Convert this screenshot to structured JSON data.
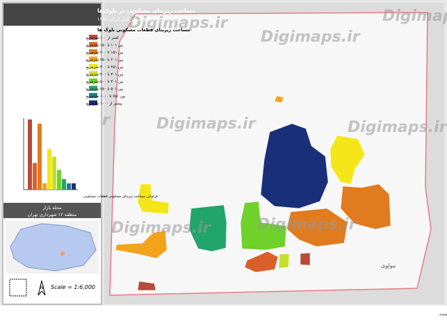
{
  "header": {
    "title": "مساحت زیربنای مسکونی در بلوک‌ها",
    "subtitle": "براساس داده‌های مرکز آمار ایران ۱۳۹۵"
  },
  "legend": {
    "title": "مساحت زیربنای قطعات مسکونی بلوک ها",
    "classes": [
      {
        "label": "کمتر از ۱۰۰ مترمربع",
        "color": "#b84a3a"
      },
      {
        "label": "بین ۱۰۱ تا ۱۵۰ مترمربع",
        "color": "#d9602a"
      },
      {
        "label": "بین ۱۵۱ تا ۲۰۰ مترمربع",
        "color": "#e07b1f"
      },
      {
        "label": "بین ۲۰۱ تا ۲۵۰ مترمربع",
        "color": "#f2a31c"
      },
      {
        "label": "بین ۲۵۱ تا ۳۰۰ مترمربع",
        "color": "#f5e61a"
      },
      {
        "label": "بین ۳۰۱ تا ۴۰۰ مترمربع",
        "color": "#c6e02a"
      },
      {
        "label": "بین ۴۰۱ تا ۵۰۰ مترمربع",
        "color": "#6fd12a"
      },
      {
        "label": "بین ۵۰۱ تا ۷۵۰ مترمربع",
        "color": "#22a56a"
      },
      {
        "label": "بین ۷۵۱ تا ۱۰۰۰ مترمربع",
        "color": "#1e7f86"
      },
      {
        "label": "بیشتر از ۱۰۰۰ مترمربع",
        "color": "#1a2f7a"
      }
    ]
  },
  "histogram": {
    "values": [
      100,
      38,
      94,
      9,
      58,
      47,
      28,
      15,
      9,
      9
    ],
    "ylim": [
      0,
      100
    ],
    "caption": "فراوانی مساحت زیربنای مسکونی قطعات مسکونی"
  },
  "location": {
    "neighborhood": "محله بازار",
    "district": "منطقه ۱۲ شهرداری تهران"
  },
  "scale": "Scale = 1:6,000",
  "north": "N",
  "watermark": "Digimaps.ir",
  "street": "مولوی",
  "footer": "حقوق مالکیت معنوی این محصول متعلق به سایت www.digimaps.ir بوده و تمامی حقوق آن محفوظ است."
}
